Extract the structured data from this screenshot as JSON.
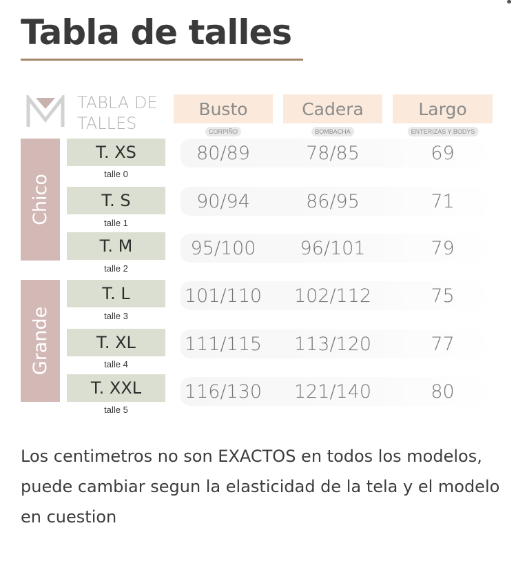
{
  "title": "Tabla de talles",
  "table_heading": [
    "TABLA DE",
    "TALLES"
  ],
  "columns": [
    {
      "label": "Busto",
      "sub": "CORPIÑO"
    },
    {
      "label": "Cadera",
      "sub": "BOMBACHA"
    },
    {
      "label": "Largo",
      "sub": "ENTERIZAS Y BODYS"
    }
  ],
  "groups": [
    "Chico",
    "Grande"
  ],
  "rows": [
    {
      "size": "T. XS",
      "talle": "talle 0",
      "busto": "80/89",
      "cadera": "78/85",
      "largo": "69"
    },
    {
      "size": "T. S",
      "talle": "talle 1",
      "busto": "90/94",
      "cadera": "86/95",
      "largo": "71"
    },
    {
      "size": "T. M",
      "talle": "talle 2",
      "busto": "95/100",
      "cadera": "96/101",
      "largo": "79"
    },
    {
      "size": "T. L",
      "talle": "talle 3",
      "busto": "101/110",
      "cadera": "102/112",
      "largo": "75"
    },
    {
      "size": "T. XL",
      "talle": "talle 4",
      "busto": "111/115",
      "cadera": "113/120",
      "largo": "77"
    },
    {
      "size": "T. XXL",
      "talle": "talle 5",
      "busto": "116/130",
      "cadera": "121/140",
      "largo": "80"
    }
  ],
  "note": "Los centimetros no son EXACTOS en todos los modelos, puede cambiar segun la elasticidad de la tela y el modelo en cuestion",
  "colors": {
    "title_underline": "#a38669",
    "header_bg": "#fbeadb",
    "group_bg": "#d3b9b6",
    "size_bg": "#dbdfd2"
  }
}
